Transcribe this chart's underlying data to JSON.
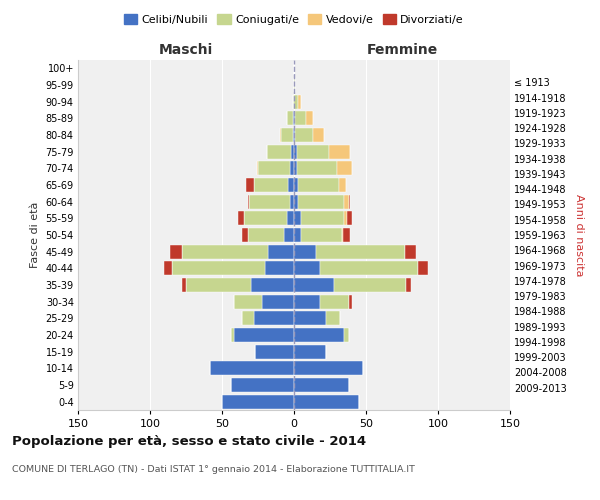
{
  "age_groups": [
    "0-4",
    "5-9",
    "10-14",
    "15-19",
    "20-24",
    "25-29",
    "30-34",
    "35-39",
    "40-44",
    "45-49",
    "50-54",
    "55-59",
    "60-64",
    "65-69",
    "70-74",
    "75-79",
    "80-84",
    "85-89",
    "90-94",
    "95-99",
    "100+"
  ],
  "birth_years": [
    "2009-2013",
    "2004-2008",
    "1999-2003",
    "1994-1998",
    "1989-1993",
    "1984-1988",
    "1979-1983",
    "1974-1978",
    "1969-1973",
    "1964-1968",
    "1959-1963",
    "1954-1958",
    "1949-1953",
    "1944-1948",
    "1939-1943",
    "1934-1938",
    "1929-1933",
    "1924-1928",
    "1919-1923",
    "1914-1918",
    "≤ 1913"
  ],
  "maschi": {
    "celibi": [
      50,
      44,
      58,
      27,
      42,
      28,
      22,
      30,
      20,
      18,
      7,
      5,
      3,
      4,
      3,
      2,
      1,
      1,
      0,
      0,
      0
    ],
    "coniugati": [
      0,
      0,
      0,
      0,
      2,
      8,
      20,
      45,
      65,
      60,
      25,
      30,
      28,
      24,
      22,
      17,
      8,
      4,
      1,
      0,
      0
    ],
    "vedovi": [
      0,
      0,
      0,
      0,
      0,
      0,
      0,
      0,
      0,
      0,
      0,
      0,
      0,
      0,
      1,
      0,
      1,
      0,
      0,
      0,
      0
    ],
    "divorziati": [
      0,
      0,
      0,
      0,
      0,
      0,
      0,
      3,
      5,
      8,
      4,
      4,
      1,
      5,
      0,
      0,
      0,
      0,
      0,
      0,
      0
    ]
  },
  "femmine": {
    "nubili": [
      45,
      38,
      48,
      22,
      35,
      22,
      18,
      28,
      18,
      15,
      5,
      5,
      3,
      3,
      2,
      2,
      1,
      1,
      0,
      0,
      0
    ],
    "coniugate": [
      0,
      0,
      0,
      0,
      3,
      10,
      20,
      50,
      68,
      62,
      28,
      30,
      32,
      28,
      28,
      22,
      12,
      7,
      3,
      1,
      0
    ],
    "vedove": [
      0,
      0,
      0,
      0,
      0,
      0,
      0,
      0,
      0,
      0,
      1,
      2,
      3,
      5,
      10,
      15,
      8,
      5,
      2,
      0,
      0
    ],
    "divorziate": [
      0,
      0,
      0,
      0,
      0,
      0,
      2,
      3,
      7,
      8,
      5,
      3,
      1,
      0,
      0,
      0,
      0,
      0,
      0,
      0,
      0
    ]
  },
  "color_celibi": "#4472C4",
  "color_coniugati": "#C6D68F",
  "color_vedovi": "#F5C77A",
  "color_divorziati": "#C0392B",
  "title": "Popolazione per età, sesso e stato civile - 2014",
  "subtitle": "COMUNE DI TERLAGO (TN) - Dati ISTAT 1° gennaio 2014 - Elaborazione TUTTITALIA.IT",
  "label_maschi": "Maschi",
  "label_femmine": "Femmine",
  "ylabel_left": "Fasce di età",
  "ylabel_right": "Anni di nascita",
  "xlim": 150,
  "bg_color": "#f0f0f0",
  "grid_color": "#ffffff"
}
